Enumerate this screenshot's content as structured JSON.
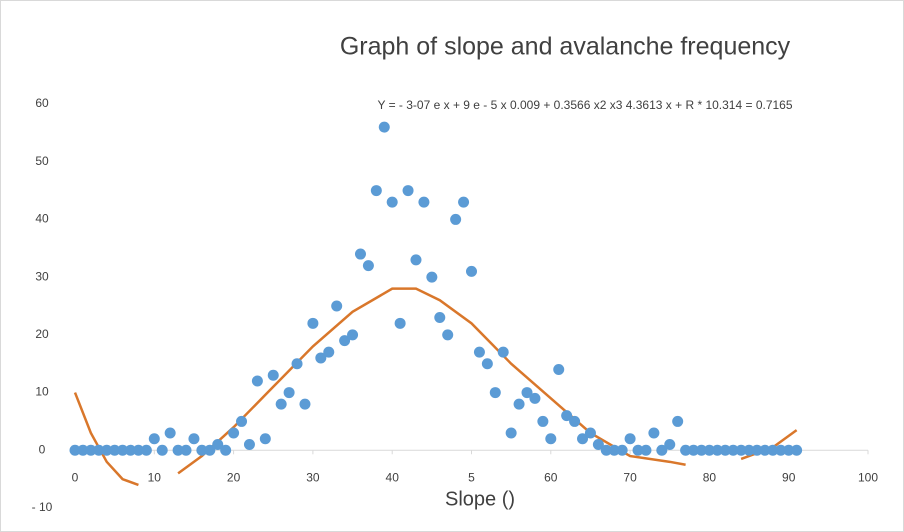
{
  "chart_data": {
    "type": "scatter",
    "title": "Graph of slope and avalanche frequency",
    "annotation": "Y = - 3-07 e x + 9 e - 5 x 0.009 + 0.3566 x2 x3 4.3613 x + R * 10.314 = 0.7165",
    "x_label": "Slope ()",
    "xlim": [
      0,
      100
    ],
    "xticks": [
      0,
      10,
      20,
      30,
      40,
      {
        "value": 50,
        "label": "5"
      },
      60,
      70,
      80,
      90,
      100
    ],
    "ylim": [
      -10,
      60
    ],
    "yticks": [
      {
        "value": -10,
        "label": "- 10"
      },
      0,
      10,
      20,
      30,
      40,
      50,
      60
    ],
    "grid": false,
    "color": "#5b9bd5",
    "x": [
      0,
      1,
      2,
      3,
      4,
      5,
      6,
      7,
      8,
      9,
      10,
      11,
      12,
      13,
      14,
      15,
      16,
      17,
      18,
      19,
      20,
      21,
      22,
      23,
      24,
      25,
      26,
      27,
      28,
      29,
      30,
      31,
      32,
      33,
      34,
      35,
      36,
      37,
      38,
      39,
      40,
      41,
      42,
      43,
      44,
      45,
      46,
      47,
      48,
      49,
      50,
      51,
      52,
      53,
      54,
      55,
      56,
      57,
      58,
      59,
      60,
      61,
      62,
      63,
      64,
      65,
      66,
      67,
      68,
      69,
      70,
      71,
      72,
      73,
      74,
      75,
      76,
      77,
      78,
      79,
      80,
      81,
      82,
      83,
      84,
      85,
      86,
      87,
      88,
      89,
      90,
      91
    ],
    "values": [
      0,
      0,
      0,
      0,
      0,
      0,
      0,
      0,
      0,
      0,
      2,
      0,
      3,
      0,
      0,
      2,
      0,
      0,
      1,
      0,
      3,
      5,
      1,
      12,
      2,
      13,
      8,
      10,
      15,
      8,
      22,
      16,
      17,
      25,
      19,
      20,
      34,
      32,
      45,
      56,
      43,
      22,
      45,
      33,
      43,
      30,
      23,
      20,
      40,
      43,
      31,
      17,
      15,
      10,
      17,
      3,
      8,
      10,
      9,
      5,
      2,
      14,
      6,
      5,
      2,
      3,
      1,
      0,
      0,
      0,
      2,
      0,
      0,
      3,
      0,
      1,
      5,
      0,
      0,
      0,
      0,
      0,
      0,
      0,
      0,
      0,
      0,
      0,
      0,
      0,
      0,
      0
    ],
    "trendline": {
      "color": "#d9772b",
      "x": [
        0,
        2,
        4,
        6,
        8,
        10,
        13,
        16,
        20,
        25,
        30,
        35,
        40,
        43,
        46,
        50,
        55,
        60,
        65,
        70,
        75,
        77,
        80,
        84,
        88,
        91
      ],
      "values": [
        10,
        3,
        -2,
        -5,
        -6,
        null,
        -4,
        -1,
        4,
        11,
        18,
        24,
        28,
        28,
        26,
        22,
        15,
        9,
        3,
        -1,
        -2,
        -2.5,
        null,
        -1.5,
        0.5,
        3.5
      ]
    }
  }
}
